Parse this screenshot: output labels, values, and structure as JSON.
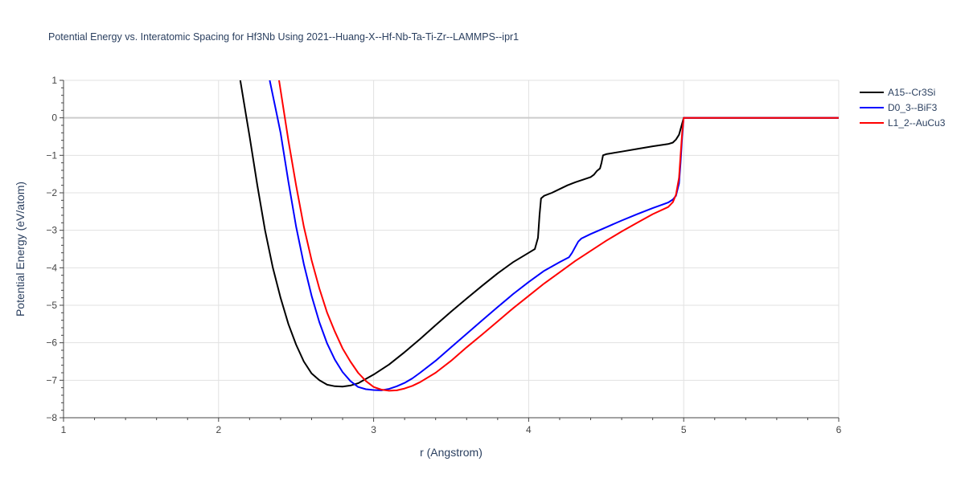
{
  "chart_data": {
    "type": "line",
    "title": "Potential Energy vs. Interatomic Spacing for Hf3Nb Using 2021--Huang-X--Hf-Nb-Ta-Ti-Zr--LAMMPS--ipr1",
    "xlabel": "r (Angstrom)",
    "ylabel": "Potential Energy (eV/atom)",
    "xlim": [
      1,
      6
    ],
    "ylim": [
      -8,
      1
    ],
    "xticks": [
      1,
      2,
      3,
      4,
      5,
      6
    ],
    "yticks": [
      -8,
      -7,
      -6,
      -5,
      -4,
      -3,
      -2,
      -1,
      0,
      1
    ],
    "grid": true,
    "legend_position": "top-right",
    "series": [
      {
        "name": "A15--Cr3Si",
        "color": "#000000",
        "x": [
          2.14,
          2.18,
          2.2,
          2.25,
          2.3,
          2.35,
          2.4,
          2.45,
          2.5,
          2.55,
          2.6,
          2.65,
          2.7,
          2.75,
          2.8,
          2.85,
          2.9,
          3.0,
          3.1,
          3.2,
          3.3,
          3.4,
          3.5,
          3.6,
          3.7,
          3.8,
          3.9,
          4.0,
          4.04,
          4.06,
          4.07,
          4.08,
          4.1,
          4.15,
          4.2,
          4.25,
          4.3,
          4.35,
          4.4,
          4.42,
          4.44,
          4.46,
          4.47,
          4.48,
          4.5,
          4.6,
          4.7,
          4.8,
          4.9,
          4.93,
          4.95,
          4.97,
          4.99,
          5.0,
          6.0
        ],
        "y": [
          1.0,
          0.0,
          -0.5,
          -1.8,
          -3.0,
          -4.0,
          -4.8,
          -5.5,
          -6.05,
          -6.5,
          -6.82,
          -7.0,
          -7.12,
          -7.16,
          -7.17,
          -7.14,
          -7.08,
          -6.85,
          -6.58,
          -6.25,
          -5.9,
          -5.53,
          -5.17,
          -4.82,
          -4.48,
          -4.15,
          -3.85,
          -3.6,
          -3.5,
          -3.2,
          -2.6,
          -2.15,
          -2.08,
          -2.0,
          -1.9,
          -1.8,
          -1.72,
          -1.65,
          -1.58,
          -1.52,
          -1.42,
          -1.35,
          -1.2,
          -1.0,
          -0.97,
          -0.9,
          -0.83,
          -0.76,
          -0.7,
          -0.66,
          -0.58,
          -0.45,
          -0.15,
          0.0,
          0.0
        ]
      },
      {
        "name": "D0_3--BiF3",
        "color": "#0000ff",
        "x": [
          2.33,
          2.38,
          2.4,
          2.45,
          2.5,
          2.55,
          2.6,
          2.65,
          2.7,
          2.75,
          2.8,
          2.85,
          2.9,
          2.95,
          3.0,
          3.05,
          3.1,
          3.15,
          3.2,
          3.25,
          3.3,
          3.4,
          3.5,
          3.6,
          3.7,
          3.8,
          3.9,
          4.0,
          4.1,
          4.2,
          4.26,
          4.28,
          4.3,
          4.32,
          4.34,
          4.4,
          4.5,
          4.6,
          4.7,
          4.8,
          4.9,
          4.93,
          4.95,
          4.97,
          4.98,
          4.99,
          5.0,
          6.0
        ],
        "y": [
          1.0,
          0.0,
          -0.4,
          -1.7,
          -2.9,
          -3.9,
          -4.75,
          -5.45,
          -6.02,
          -6.45,
          -6.78,
          -7.02,
          -7.18,
          -7.24,
          -7.26,
          -7.27,
          -7.23,
          -7.16,
          -7.07,
          -6.95,
          -6.8,
          -6.48,
          -6.12,
          -5.76,
          -5.4,
          -5.05,
          -4.7,
          -4.38,
          -4.08,
          -3.85,
          -3.72,
          -3.6,
          -3.45,
          -3.3,
          -3.22,
          -3.1,
          -2.92,
          -2.74,
          -2.57,
          -2.41,
          -2.26,
          -2.18,
          -2.08,
          -1.75,
          -1.2,
          -0.5,
          0.0,
          0.0
        ]
      },
      {
        "name": "L1_2--AuCu3",
        "color": "#ff0000",
        "x": [
          2.39,
          2.42,
          2.45,
          2.5,
          2.55,
          2.6,
          2.65,
          2.7,
          2.75,
          2.8,
          2.85,
          2.9,
          2.95,
          3.0,
          3.05,
          3.1,
          3.15,
          3.2,
          3.25,
          3.3,
          3.4,
          3.5,
          3.6,
          3.7,
          3.8,
          3.9,
          4.0,
          4.1,
          4.2,
          4.3,
          4.4,
          4.5,
          4.6,
          4.7,
          4.8,
          4.9,
          4.93,
          4.95,
          4.97,
          4.98,
          4.99,
          5.0,
          6.0
        ],
        "y": [
          1.0,
          0.2,
          -0.6,
          -1.8,
          -2.9,
          -3.8,
          -4.55,
          -5.2,
          -5.7,
          -6.15,
          -6.5,
          -6.8,
          -7.02,
          -7.18,
          -7.25,
          -7.28,
          -7.27,
          -7.22,
          -7.15,
          -7.05,
          -6.8,
          -6.48,
          -6.12,
          -5.78,
          -5.43,
          -5.08,
          -4.75,
          -4.42,
          -4.12,
          -3.82,
          -3.55,
          -3.28,
          -3.03,
          -2.8,
          -2.57,
          -2.38,
          -2.25,
          -2.05,
          -1.6,
          -1.0,
          -0.4,
          0.0,
          0.0
        ]
      }
    ]
  }
}
